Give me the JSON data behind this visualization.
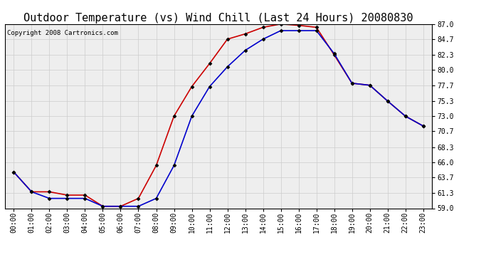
{
  "title": "Outdoor Temperature (vs) Wind Chill (Last 24 Hours) 20080830",
  "copyright": "Copyright 2008 Cartronics.com",
  "hours": [
    "00:00",
    "01:00",
    "02:00",
    "03:00",
    "04:00",
    "05:00",
    "06:00",
    "07:00",
    "08:00",
    "09:00",
    "10:00",
    "11:00",
    "12:00",
    "13:00",
    "14:00",
    "15:00",
    "16:00",
    "17:00",
    "18:00",
    "19:00",
    "20:00",
    "21:00",
    "22:00",
    "23:00"
  ],
  "temp": [
    64.5,
    61.5,
    61.5,
    61.0,
    61.0,
    59.3,
    59.3,
    60.5,
    65.5,
    73.0,
    77.5,
    81.0,
    84.7,
    85.5,
    86.5,
    87.0,
    86.8,
    86.5,
    82.3,
    78.0,
    77.7,
    75.3,
    73.0,
    71.5
  ],
  "windchill": [
    64.5,
    61.5,
    60.5,
    60.5,
    60.5,
    59.3,
    59.3,
    59.3,
    60.5,
    65.5,
    73.0,
    77.5,
    80.5,
    83.0,
    84.7,
    86.0,
    86.0,
    86.0,
    82.5,
    78.0,
    77.7,
    75.3,
    73.0,
    71.5
  ],
  "temp_color": "#cc0000",
  "windchill_color": "#0000cc",
  "marker": "D",
  "marker_size": 2.5,
  "marker_color": "#000000",
  "bg_color": "#ffffff",
  "plot_bg_color": "#eeeeee",
  "grid_color": "#cccccc",
  "ylim_min": 59.0,
  "ylim_max": 87.0,
  "yticks": [
    59.0,
    61.3,
    63.7,
    66.0,
    68.3,
    70.7,
    73.0,
    75.3,
    77.7,
    80.0,
    82.3,
    84.7,
    87.0
  ],
  "title_fontsize": 11,
  "copyright_fontsize": 6.5,
  "tick_fontsize": 7,
  "linewidth": 1.2
}
